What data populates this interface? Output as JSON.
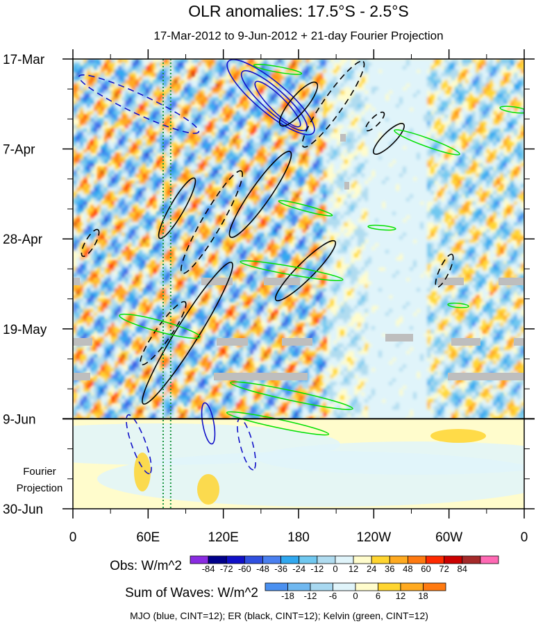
{
  "chart_data": {
    "type": "heatmap",
    "title": "OLR anomalies: 17.5°S - 2.5°S",
    "subtitle": "17-Mar-2012 to 9-Jun-2012 + 21-day Fourier Projection",
    "x_ticks": [
      {
        "lon": 0,
        "label": "0"
      },
      {
        "lon": 60,
        "label": "60E"
      },
      {
        "lon": 120,
        "label": "120E"
      },
      {
        "lon": 180,
        "label": "180"
      },
      {
        "lon": 240,
        "label": "120W"
      },
      {
        "lon": 300,
        "label": "60W"
      },
      {
        "lon": 360,
        "label": "0"
      }
    ],
    "y_ticks": [
      {
        "day": 0,
        "label": "17-Mar"
      },
      {
        "day": 21,
        "label": "7-Apr"
      },
      {
        "day": 42,
        "label": "28-Apr"
      },
      {
        "day": 63,
        "label": "19-May"
      },
      {
        "day": 84,
        "label": "9-Jun"
      },
      {
        "day": 105,
        "label": "30-Jun"
      }
    ],
    "xlim": [
      0,
      360
    ],
    "ylim_days": [
      0,
      105
    ],
    "projection_start_day": 84,
    "projection_label_line1": "Fourier",
    "projection_label_line2": "Projection",
    "reference_lines_lon": [
      {
        "lon": 72,
        "color": "#1a9641"
      },
      {
        "lon": 78,
        "color": "#1a9641"
      }
    ],
    "obs_colorbar": {
      "label": "Obs: W/m^2",
      "ticks": [
        "-84",
        "-72",
        "-60",
        "-48",
        "-36",
        "-24",
        "-12",
        "0",
        "12",
        "24",
        "36",
        "48",
        "60",
        "72",
        "84"
      ],
      "colors": [
        "#8a2be2",
        "#00008b",
        "#1010c8",
        "#3050e0",
        "#4a80f0",
        "#30a8f0",
        "#70c8f0",
        "#b0dcf0",
        "#e0f4fa",
        "#fffccc",
        "#ffd530",
        "#ffaa20",
        "#ff7a10",
        "#ff2a00",
        "#cc0000",
        "#a52a2a",
        "#ff69b4"
      ]
    },
    "waves_colorbar": {
      "label": "Sum of Waves: W/m^2",
      "ticks": [
        "-18",
        "-12",
        "-6",
        "0",
        "6",
        "12",
        "18"
      ],
      "colors": [
        "#4a90f0",
        "#70b8f0",
        "#a8d8f0",
        "#e0f4fa",
        "#fffccc",
        "#ffd530",
        "#ffaa20",
        "#ff7a10"
      ]
    },
    "footer": "MJO (blue, CINT=12); ER (black, CINT=12); Kelvin (green, CINT=12)",
    "contour_series": [
      {
        "name": "MJO",
        "color": "#1010c8"
      },
      {
        "name": "ER",
        "color": "#000000"
      },
      {
        "name": "Kelvin",
        "color": "#00e000"
      }
    ]
  }
}
